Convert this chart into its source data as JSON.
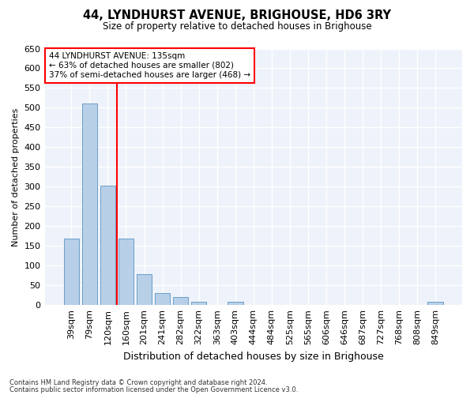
{
  "title": "44, LYNDHURST AVENUE, BRIGHOUSE, HD6 3RY",
  "subtitle": "Size of property relative to detached houses in Brighouse",
  "xlabel": "Distribution of detached houses by size in Brighouse",
  "ylabel": "Number of detached properties",
  "categories": [
    "39sqm",
    "79sqm",
    "120sqm",
    "160sqm",
    "201sqm",
    "241sqm",
    "282sqm",
    "322sqm",
    "363sqm",
    "403sqm",
    "444sqm",
    "484sqm",
    "525sqm",
    "565sqm",
    "606sqm",
    "646sqm",
    "687sqm",
    "727sqm",
    "768sqm",
    "808sqm",
    "849sqm"
  ],
  "values": [
    168,
    510,
    302,
    168,
    78,
    30,
    20,
    8,
    0,
    8,
    0,
    0,
    0,
    0,
    0,
    0,
    0,
    0,
    0,
    0,
    8
  ],
  "bar_color": "#b8cfe8",
  "bar_edge_color": "#6a9fc8",
  "vline_x": 2.5,
  "vline_color": "red",
  "annotation_text": "44 LYNDHURST AVENUE: 135sqm\n← 63% of detached houses are smaller (802)\n37% of semi-detached houses are larger (468) →",
  "annotation_box_color": "white",
  "annotation_box_edge_color": "red",
  "ylim": [
    0,
    650
  ],
  "yticks": [
    0,
    50,
    100,
    150,
    200,
    250,
    300,
    350,
    400,
    450,
    500,
    550,
    600,
    650
  ],
  "footer_line1": "Contains HM Land Registry data © Crown copyright and database right 2024.",
  "footer_line2": "Contains public sector information licensed under the Open Government Licence v3.0.",
  "bg_color": "#ffffff",
  "plot_bg_color": "#eef2fa"
}
